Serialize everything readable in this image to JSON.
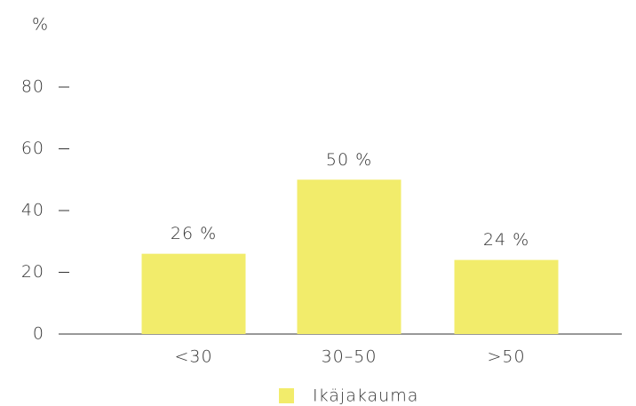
{
  "chart_data": {
    "type": "bar",
    "y_label": "%",
    "categories": [
      "<30",
      "30–50",
      ">50"
    ],
    "values": [
      26,
      50,
      24
    ],
    "value_labels": [
      "26 %",
      "50 %",
      "24 %"
    ],
    "color": "#f2ec6b",
    "series_name": "Ikäjakauma",
    "ylim": [
      0,
      80
    ],
    "yticks": [
      0,
      20,
      40,
      60,
      80
    ]
  }
}
